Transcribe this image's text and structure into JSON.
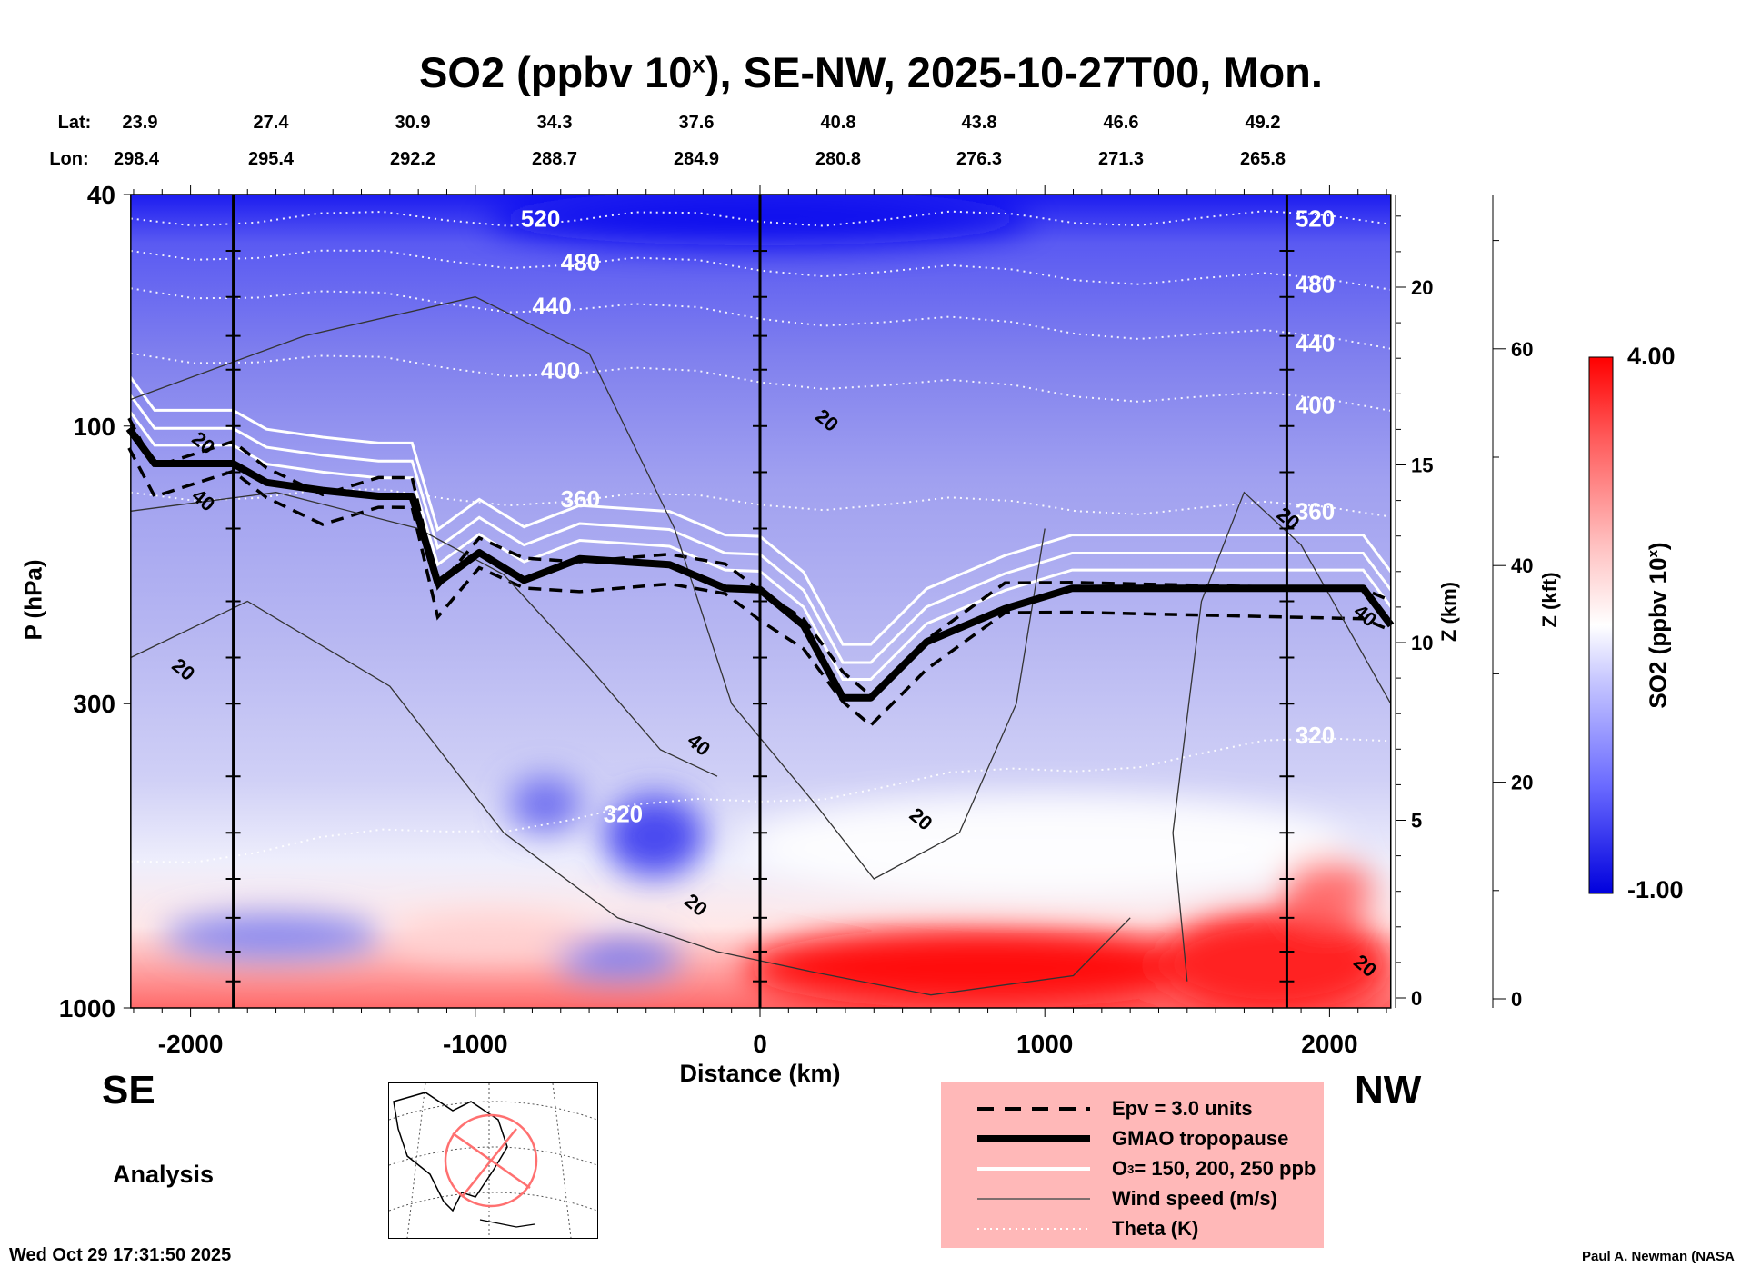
{
  "chart_data": {
    "type": "heatmap",
    "title_parts": [
      "SO2 (ppbv 10",
      "x",
      "), SE-NW, 2025-10-27T00, Mon."
    ],
    "lat_label": "Lat:",
    "lon_label": "Lon:",
    "lat": [
      "23.9",
      "27.4",
      "30.9",
      "34.3",
      "37.6",
      "40.8",
      "43.8",
      "46.6",
      "49.2"
    ],
    "lon": [
      "298.4",
      "295.4",
      "292.2",
      "288.7",
      "284.9",
      "280.8",
      "276.3",
      "271.3",
      "265.8"
    ],
    "xlabel": "Distance (km)",
    "ylabel": "P (hPa)",
    "xlim": [
      -2210,
      2215
    ],
    "ylim_hpa": [
      1000,
      40
    ],
    "x_ticks": [
      "-2000",
      "-1000",
      "0",
      "1000",
      "2000"
    ],
    "x_tick_values": [
      -2000,
      -1000,
      0,
      1000,
      2000
    ],
    "y_ticks": [
      "40",
      "100",
      "300",
      "1000"
    ],
    "y_tick_values": [
      40,
      100,
      300,
      1000
    ],
    "z_km_label": "Z (km)",
    "z_km_ticks": [
      "20",
      "15",
      "10",
      "5",
      "0"
    ],
    "z_km_values": [
      20,
      15,
      10,
      5,
      0
    ],
    "z_kft_label": "Z (kft)",
    "z_kft_ticks": [
      "60",
      "40",
      "20",
      "0"
    ],
    "z_kft_values": [
      60,
      40,
      20,
      0
    ],
    "colorbar": {
      "label_main": "SO2 (ppbv 10",
      "label_sup": "x",
      "label_end": ")",
      "max": "4.00",
      "min": "-1.00",
      "colors": [
        "#0000dd",
        "#7070ff",
        "#c8c8ff",
        "#ffffff",
        "#ffc0c0",
        "#ff6060",
        "#ff0000"
      ]
    },
    "side_left": "SE",
    "side_right": "NW",
    "marker_lines_km": [
      -1850,
      0,
      1850
    ],
    "tropopause": [
      [
        -2216,
        101
      ],
      [
        -2126,
        116
      ],
      [
        -1851,
        116
      ],
      [
        -1733,
        125
      ],
      [
        -1536,
        129
      ],
      [
        -1340,
        132
      ],
      [
        -1222,
        132
      ],
      [
        -1132,
        186
      ],
      [
        -986,
        165
      ],
      [
        -829,
        184
      ],
      [
        -633,
        169
      ],
      [
        -318,
        173
      ],
      [
        -122,
        190
      ],
      [
        0,
        191
      ],
      [
        153,
        220
      ],
      [
        291,
        293
      ],
      [
        389,
        293
      ],
      [
        585,
        235
      ],
      [
        860,
        206
      ],
      [
        1096,
        190
      ],
      [
        2118,
        190
      ],
      [
        2216,
        220
      ]
    ],
    "theta_contours": [
      {
        "label": "520",
        "p_left": 44,
        "p_right": 44,
        "label_km": -840
      },
      {
        "label": "480",
        "p_left": 50,
        "p_right": 57,
        "label_km": -700
      },
      {
        "label": "440",
        "p_left": 58,
        "p_right": 72,
        "label_km": -800
      },
      {
        "label": "400",
        "p_left": 75,
        "p_right": 92,
        "label_km": -770
      },
      {
        "label": "360",
        "p_left": 130,
        "p_right": 140,
        "label_km": -700
      },
      {
        "label": "320",
        "p_left": 560,
        "p_right": 340,
        "label_km": -550
      }
    ],
    "wind_labels": [
      {
        "text": "20",
        "km": -2000,
        "p": 106
      },
      {
        "text": "40",
        "km": -2000,
        "p": 133
      },
      {
        "text": "20",
        "km": -2070,
        "p": 260
      },
      {
        "text": "40",
        "km": -260,
        "p": 350
      },
      {
        "text": "20",
        "km": -270,
        "p": 660
      },
      {
        "text": "20",
        "km": 190,
        "p": 97
      },
      {
        "text": "20",
        "km": 520,
        "p": 470
      },
      {
        "text": "20",
        "km": 1810,
        "p": 143
      },
      {
        "text": "40",
        "km": 2080,
        "p": 210
      },
      {
        "text": "20",
        "km": 2080,
        "p": 840
      }
    ],
    "legend": [
      {
        "label": "Epv = 3.0 units",
        "style": "dashed"
      },
      {
        "label": "GMAO tropopause",
        "style": "thick"
      },
      {
        "label_main": "O",
        "label_sub": "3",
        "label_end": " = 150, 200, 250 ppb",
        "style": "white"
      },
      {
        "label": "Wind speed (m/s)",
        "style": "thin"
      },
      {
        "label": "Theta (K)",
        "style": "dotted"
      }
    ]
  },
  "analysis_label": "Analysis",
  "timestamp": "Wed Oct 29 17:31:50 2025",
  "credit": "Paul A. Newman (NASA"
}
